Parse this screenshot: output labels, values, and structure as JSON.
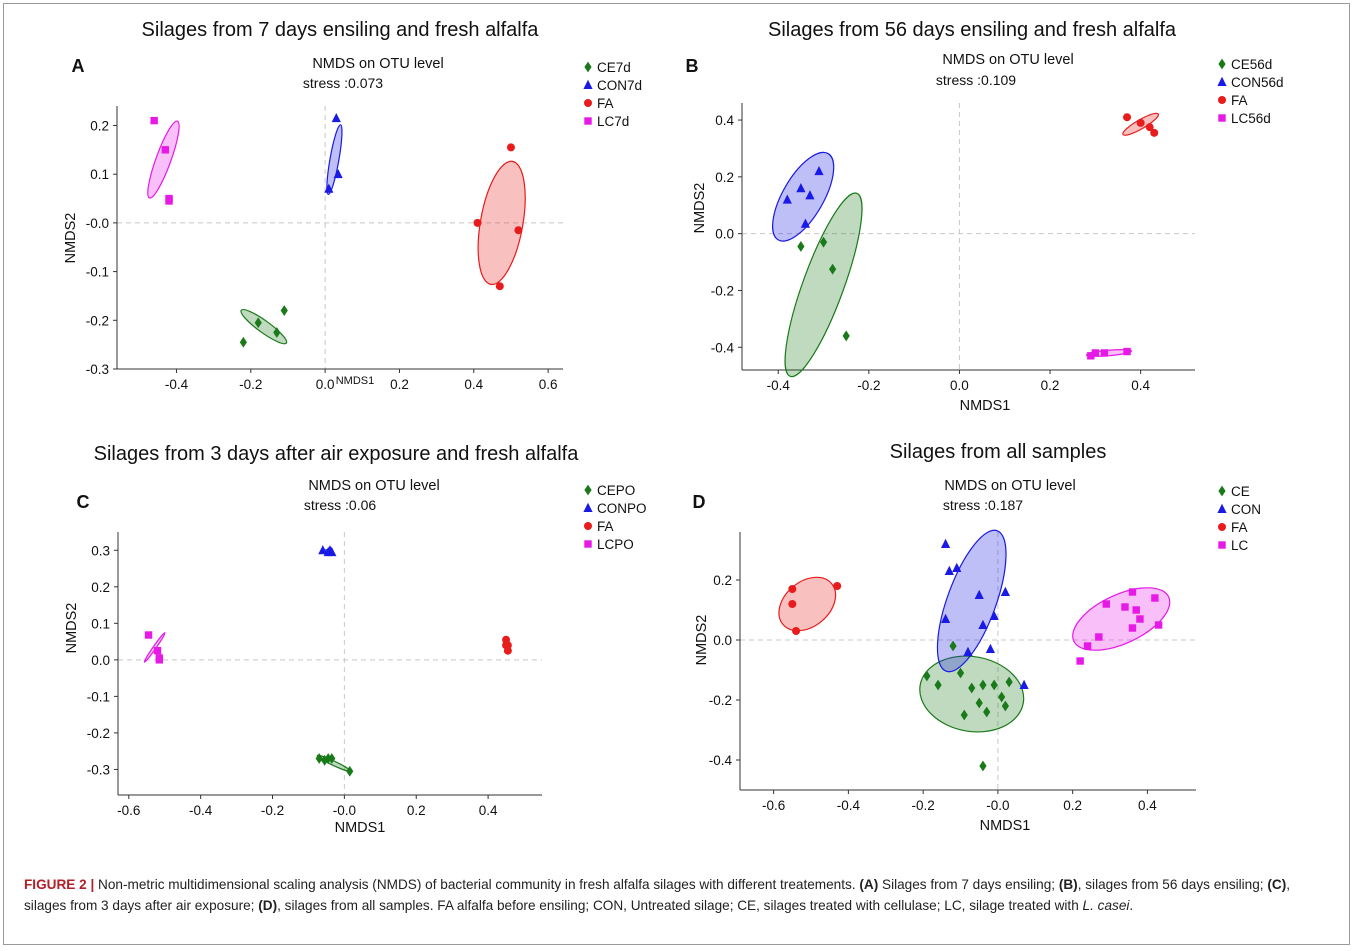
{
  "chart_data": [
    {
      "type": "scatter",
      "panel_letter": "A",
      "title": "Silages from 7 days ensiling and fresh alfalfa",
      "subtitle": "NMDS on OTU level",
      "stress": "stress :0.073",
      "xlabel": "NMDS1",
      "ylabel": "NMDS2",
      "xlim": [
        -0.56,
        0.64
      ],
      "ylim": [
        -0.3,
        0.24
      ],
      "xticks": [
        -0.4,
        -0.2,
        0.0,
        0.2,
        0.4,
        0.6
      ],
      "xtick_labels": [
        "-0.4",
        "-0.2",
        "0.0",
        "0.2",
        "0.4",
        "0.6"
      ],
      "yticks": [
        -0.3,
        -0.2,
        -0.1,
        0.0,
        0.1,
        0.2
      ],
      "ytick_labels": [
        "-0.3",
        "-0.2",
        "-0.1",
        "-0.0",
        "0.1",
        "0.2"
      ],
      "legend_position": "top-right",
      "series": [
        {
          "name": "CE7d",
          "color": "#1a7a1a",
          "marker": "diamond",
          "points": [
            [
              -0.22,
              -0.245
            ],
            [
              -0.18,
              -0.205
            ],
            [
              -0.13,
              -0.225
            ],
            [
              -0.11,
              -0.18
            ]
          ],
          "ellipse": {
            "cx": -0.165,
            "cy": -0.213,
            "rx": 0.075,
            "ry": 0.016,
            "angle": 36
          }
        },
        {
          "name": "CON7d",
          "color": "#1a1ae6",
          "marker": "triangle",
          "points": [
            [
              0.01,
              0.07
            ],
            [
              0.03,
              0.215
            ],
            [
              0.035,
              0.1
            ]
          ],
          "ellipse": {
            "cx": 0.025,
            "cy": 0.13,
            "rx": 0.095,
            "ry": 0.012,
            "angle": -80
          }
        },
        {
          "name": "FA",
          "color": "#e81c1c",
          "marker": "circle",
          "points": [
            [
              0.41,
              0.0
            ],
            [
              0.47,
              -0.13
            ],
            [
              0.5,
              0.155
            ],
            [
              0.52,
              -0.015
            ]
          ],
          "ellipse": {
            "cx": 0.475,
            "cy": 0.0,
            "rx": 0.168,
            "ry": 0.057,
            "angle": -80
          }
        },
        {
          "name": "LC7d",
          "color": "#e619e6",
          "marker": "square",
          "points": [
            [
              -0.46,
              0.21
            ],
            [
              -0.43,
              0.15
            ],
            [
              -0.42,
              0.045
            ],
            [
              -0.42,
              0.05
            ]
          ],
          "ellipse": {
            "cx": -0.435,
            "cy": 0.13,
            "rx": 0.11,
            "ry": 0.02,
            "angle": -70
          }
        }
      ]
    },
    {
      "type": "scatter",
      "panel_letter": "B",
      "title": "Silages from 56 days ensiling and fresh alfalfa",
      "subtitle": "NMDS on OTU level",
      "stress": "stress :0.109",
      "xlabel": "NMDS1",
      "ylabel": "NMDS2",
      "xlim": [
        -0.48,
        0.52
      ],
      "ylim": [
        -0.48,
        0.46
      ],
      "xticks": [
        -0.4,
        -0.2,
        0.0,
        0.2,
        0.4
      ],
      "xtick_labels": [
        "-0.4",
        "-0.2",
        "0.0",
        "0.2",
        "0.4"
      ],
      "yticks": [
        -0.4,
        -0.2,
        0.0,
        0.2,
        0.4
      ],
      "ytick_labels": [
        "-0.4",
        "-0.2",
        "0.0",
        "0.2",
        "0.4"
      ],
      "legend_position": "top-right",
      "series": [
        {
          "name": "CE56d",
          "color": "#1a7a1a",
          "marker": "diamond",
          "points": [
            [
              -0.35,
              -0.045
            ],
            [
              -0.3,
              -0.03
            ],
            [
              -0.28,
              -0.125
            ],
            [
              -0.25,
              -0.36
            ]
          ],
          "ellipse": {
            "cx": -0.3,
            "cy": -0.18,
            "rx": 0.215,
            "ry": 0.045,
            "angle": -70
          }
        },
        {
          "name": "CON56d",
          "color": "#1a1ae6",
          "marker": "triangle",
          "points": [
            [
              -0.38,
              0.12
            ],
            [
              -0.35,
              0.16
            ],
            [
              -0.34,
              0.035
            ],
            [
              -0.33,
              0.135
            ],
            [
              -0.31,
              0.22
            ]
          ],
          "ellipse": {
            "cx": -0.345,
            "cy": 0.13,
            "rx": 0.11,
            "ry": 0.045,
            "angle": -60
          }
        },
        {
          "name": "FA",
          "color": "#e81c1c",
          "marker": "circle",
          "points": [
            [
              0.37,
              0.41
            ],
            [
              0.4,
              0.39
            ],
            [
              0.42,
              0.375
            ],
            [
              0.43,
              0.355
            ]
          ],
          "ellipse": {
            "cx": 0.4,
            "cy": 0.385,
            "rx": 0.045,
            "ry": 0.01,
            "angle": -30
          }
        },
        {
          "name": "LC56d",
          "color": "#e619e6",
          "marker": "square",
          "points": [
            [
              0.29,
              -0.43
            ],
            [
              0.3,
              -0.42
            ],
            [
              0.32,
              -0.42
            ],
            [
              0.37,
              -0.415
            ]
          ],
          "ellipse": {
            "cx": 0.33,
            "cy": -0.42,
            "rx": 0.05,
            "ry": 0.006,
            "angle": -5
          }
        }
      ]
    },
    {
      "type": "scatter",
      "panel_letter": "C",
      "title": "Silages from 3 days after air exposure and fresh alfalfa",
      "subtitle": "NMDS on OTU level",
      "stress": "stress :0.06",
      "xlabel": "NMDS1",
      "ylabel": "NMDS2",
      "xlim": [
        -0.63,
        0.55
      ],
      "ylim": [
        -0.37,
        0.35
      ],
      "xticks": [
        -0.6,
        -0.4,
        -0.2,
        0.0,
        0.2,
        0.4
      ],
      "xtick_labels": [
        "-0.6",
        "-0.4",
        "-0.2",
        "-0.0",
        "0.2",
        "0.4"
      ],
      "yticks": [
        -0.3,
        -0.2,
        -0.1,
        0.0,
        0.1,
        0.2,
        0.3
      ],
      "ytick_labels": [
        "-0.3",
        "-0.2",
        "-0.1",
        "0.0",
        "0.1",
        "0.2",
        "0.3"
      ],
      "legend_position": "top-right",
      "series": [
        {
          "name": "CEPO",
          "color": "#1a7a1a",
          "marker": "diamond",
          "points": [
            [
              -0.07,
              -0.27
            ],
            [
              -0.055,
              -0.275
            ],
            [
              -0.045,
              -0.27
            ],
            [
              -0.035,
              -0.27
            ],
            [
              0.015,
              -0.305
            ]
          ],
          "ellipse": {
            "cx": -0.03,
            "cy": -0.283,
            "rx": 0.05,
            "ry": 0.006,
            "angle": 25
          }
        },
        {
          "name": "CONPO",
          "color": "#1a1ae6",
          "marker": "triangle",
          "points": [
            [
              -0.06,
              0.3
            ],
            [
              -0.045,
              0.295
            ],
            [
              -0.04,
              0.3
            ],
            [
              -0.035,
              0.295
            ]
          ],
          "ellipse": {
            "cx": -0.045,
            "cy": 0.297,
            "rx": 0.012,
            "ry": 0.005,
            "angle": 0
          }
        },
        {
          "name": "FA",
          "color": "#e81c1c",
          "marker": "circle",
          "points": [
            [
              0.45,
              0.055
            ],
            [
              0.45,
              0.04
            ],
            [
              0.455,
              0.025
            ],
            [
              0.455,
              0.04
            ]
          ],
          "ellipse": {
            "cx": 0.452,
            "cy": 0.04,
            "rx": 0.018,
            "ry": 0.004,
            "angle": -90
          }
        },
        {
          "name": "LCPO",
          "color": "#e619e6",
          "marker": "square",
          "points": [
            [
              -0.545,
              0.068
            ],
            [
              -0.52,
              0.025
            ],
            [
              -0.515,
              0.005
            ],
            [
              -0.515,
              0.0
            ]
          ],
          "ellipse": {
            "cx": -0.528,
            "cy": 0.034,
            "rx": 0.05,
            "ry": 0.004,
            "angle": -55
          }
        }
      ]
    },
    {
      "type": "scatter",
      "panel_letter": "D",
      "title": "Silages from all samples",
      "subtitle": "NMDS on OTU level",
      "stress": "stress :0.187",
      "xlabel": "NMDS1",
      "ylabel": "NMDS2",
      "xlim": [
        -0.69,
        0.53
      ],
      "ylim": [
        -0.5,
        0.36
      ],
      "xticks": [
        -0.6,
        -0.4,
        -0.2,
        0.0,
        0.2,
        0.4
      ],
      "xtick_labels": [
        "-0.6",
        "-0.4",
        "-0.2",
        "-0.0",
        "0.2",
        "0.4"
      ],
      "yticks": [
        -0.4,
        -0.2,
        0.0,
        0.2
      ],
      "ytick_labels": [
        "-0.4",
        "-0.2",
        "0.0",
        "0.2"
      ],
      "legend_position": "top-right",
      "series": [
        {
          "name": "CE",
          "color": "#1a7a1a",
          "marker": "diamond",
          "points": [
            [
              -0.19,
              -0.12
            ],
            [
              -0.16,
              -0.15
            ],
            [
              -0.12,
              -0.02
            ],
            [
              -0.1,
              -0.11
            ],
            [
              -0.09,
              -0.25
            ],
            [
              -0.07,
              -0.16
            ],
            [
              -0.05,
              -0.21
            ],
            [
              -0.04,
              -0.15
            ],
            [
              -0.03,
              -0.24
            ],
            [
              -0.01,
              -0.15
            ],
            [
              0.01,
              -0.19
            ],
            [
              0.02,
              -0.22
            ],
            [
              0.03,
              -0.14
            ],
            [
              -0.04,
              -0.42
            ]
          ],
          "ellipse": {
            "cx": -0.07,
            "cy": -0.18,
            "rx": 0.14,
            "ry": 0.1,
            "angle": 10
          }
        },
        {
          "name": "CON",
          "color": "#1a1ae6",
          "marker": "triangle",
          "points": [
            [
              -0.14,
              0.32
            ],
            [
              -0.11,
              0.24
            ],
            [
              -0.13,
              0.23
            ],
            [
              -0.14,
              0.07
            ],
            [
              -0.08,
              -0.04
            ],
            [
              -0.05,
              0.15
            ],
            [
              -0.04,
              0.05
            ],
            [
              -0.02,
              -0.03
            ],
            [
              0.02,
              0.16
            ],
            [
              -0.01,
              0.08
            ],
            [
              0.07,
              -0.15
            ]
          ],
          "ellipse": {
            "cx": -0.07,
            "cy": 0.13,
            "rx": 0.2,
            "ry": 0.065,
            "angle": -70
          }
        },
        {
          "name": "FA",
          "color": "#e81c1c",
          "marker": "circle",
          "points": [
            [
              -0.55,
              0.17
            ],
            [
              -0.55,
              0.12
            ],
            [
              -0.54,
              0.03
            ],
            [
              -0.43,
              0.18
            ]
          ],
          "ellipse": {
            "cx": -0.51,
            "cy": 0.12,
            "rx": 0.085,
            "ry": 0.06,
            "angle": -40
          }
        },
        {
          "name": "LC",
          "color": "#e619e6",
          "marker": "square",
          "points": [
            [
              0.22,
              -0.07
            ],
            [
              0.24,
              -0.02
            ],
            [
              0.27,
              0.01
            ],
            [
              0.29,
              0.12
            ],
            [
              0.34,
              0.11
            ],
            [
              0.36,
              0.16
            ],
            [
              0.37,
              0.1
            ],
            [
              0.38,
              0.07
            ],
            [
              0.42,
              0.14
            ],
            [
              0.43,
              0.05
            ],
            [
              0.36,
              0.04
            ]
          ],
          "ellipse": {
            "cx": 0.33,
            "cy": 0.07,
            "rx": 0.14,
            "ry": 0.065,
            "angle": -25
          }
        }
      ]
    }
  ],
  "caption": {
    "label": "FIGURE 2 |",
    "parts": [
      {
        "t": " Non-metric multidimensional scaling analysis (NMDS) of bacterial community in fresh alfalfa silages with different treatements. ",
        "s": "n"
      },
      {
        "t": "(A)",
        "s": "b"
      },
      {
        "t": " Silages from 7 days ensiling; ",
        "s": "n"
      },
      {
        "t": "(B)",
        "s": "b"
      },
      {
        "t": ", silages from 56 days ensiling; ",
        "s": "n"
      },
      {
        "t": "(C)",
        "s": "b"
      },
      {
        "t": ", silages from 3 days after air exposure; ",
        "s": "n"
      },
      {
        "t": "(D)",
        "s": "b"
      },
      {
        "t": ", silages from all samples. FA alfalfa before ensiling; CON, Untreated silage; CE, silages treated with cellulase; LC, silage treated with ",
        "s": "n"
      },
      {
        "t": "L. casei",
        "s": "i"
      },
      {
        "t": ".",
        "s": "n"
      }
    ]
  }
}
